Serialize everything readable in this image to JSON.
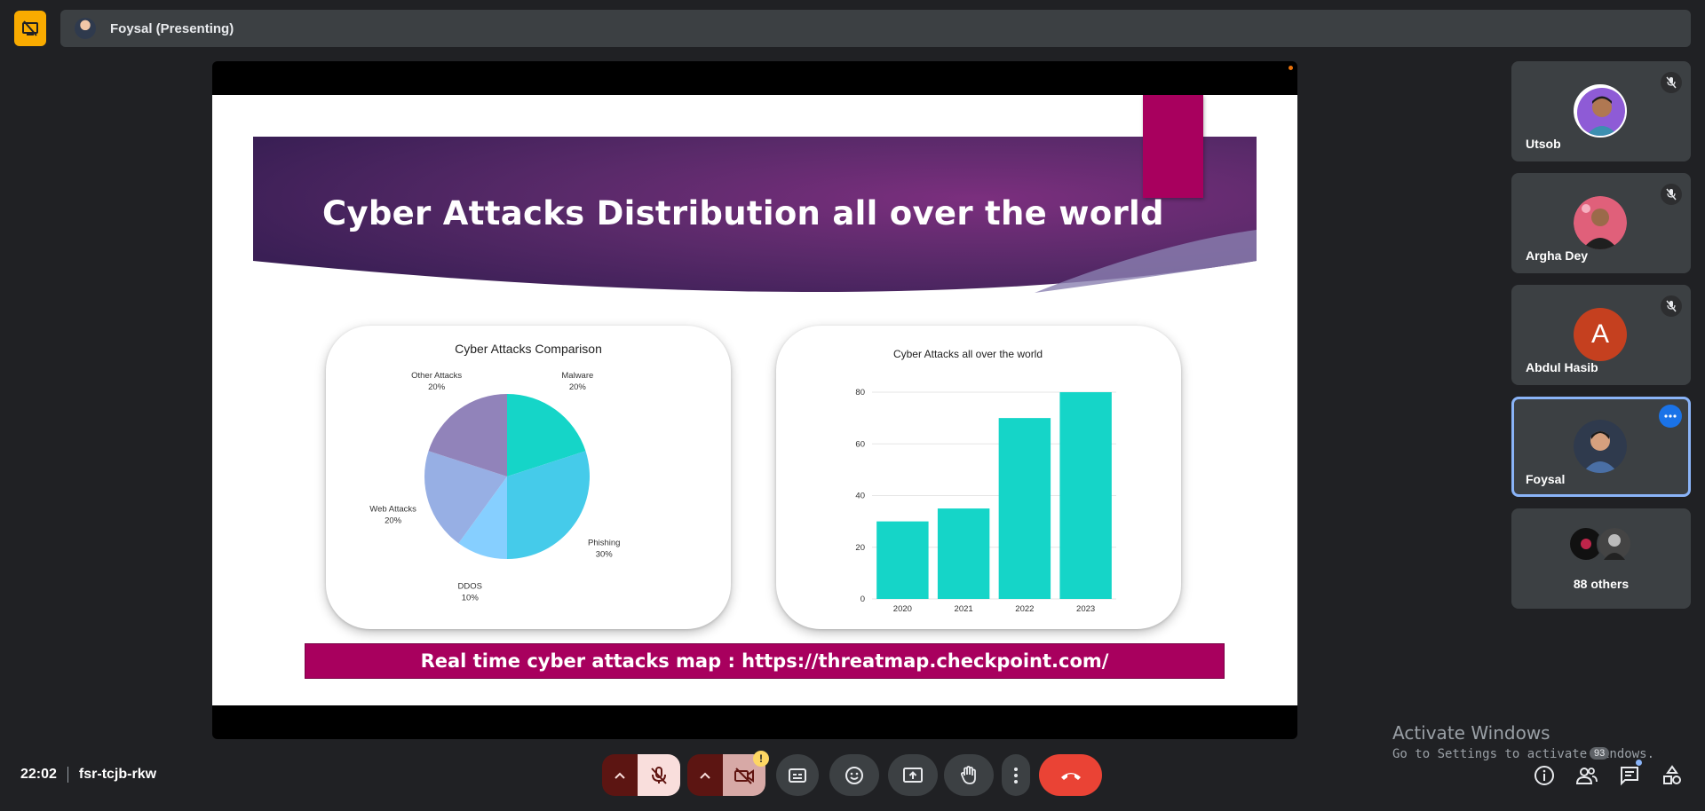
{
  "topbar": {
    "title": "Foysal (Presenting)",
    "accent": "#f9ab00"
  },
  "slide": {
    "title": "Cyber Attacks Distribution all over the world",
    "footer": "Real time cyber attacks map : https://threatmap.checkpoint.com/"
  },
  "chart_data": [
    {
      "type": "pie",
      "title": "Cyber Attacks Comparison",
      "slices": [
        {
          "label": "Malware",
          "pct_text": "20%",
          "value": 20,
          "color": "#15d5c8"
        },
        {
          "label": "Phishing",
          "pct_text": "30%",
          "value": 30,
          "color": "#45cbea"
        },
        {
          "label": "DDOS",
          "pct_text": "10%",
          "value": 10,
          "color": "#86cfff"
        },
        {
          "label": "Web Attacks",
          "pct_text": "20%",
          "value": 20,
          "color": "#97afe4"
        },
        {
          "label": "Other Attacks",
          "pct_text": "20%",
          "value": 20,
          "color": "#9183ba"
        }
      ]
    },
    {
      "type": "bar",
      "title": "Cyber Attacks all over the world",
      "categories": [
        "2020",
        "2021",
        "2022",
        "2023"
      ],
      "values": [
        30,
        35,
        70,
        80
      ],
      "ylim": [
        0,
        80
      ],
      "yticks": [
        "0",
        "20",
        "40",
        "60",
        "80"
      ],
      "color": "#15d5c8",
      "grid": true
    }
  ],
  "participants": [
    {
      "name": "Utsob",
      "muted": true
    },
    {
      "name": "Argha Dey",
      "muted": true
    },
    {
      "name": "Abdul Hasib",
      "initial": "A",
      "muted": true
    },
    {
      "name": "Foysal",
      "active": true
    }
  ],
  "others": {
    "label": "88 others"
  },
  "watermark": {
    "line1": "Activate Windows",
    "line2": "Go to Settings to activate Windows."
  },
  "meeting": {
    "time": "22:02",
    "code": "fsr-tcjb-rkw"
  },
  "controls": {
    "camera_warning": "!",
    "people_count": "93"
  },
  "colors": {
    "background": "#202124",
    "end_call": "#ea4335",
    "active_border": "#8ab4f8"
  }
}
